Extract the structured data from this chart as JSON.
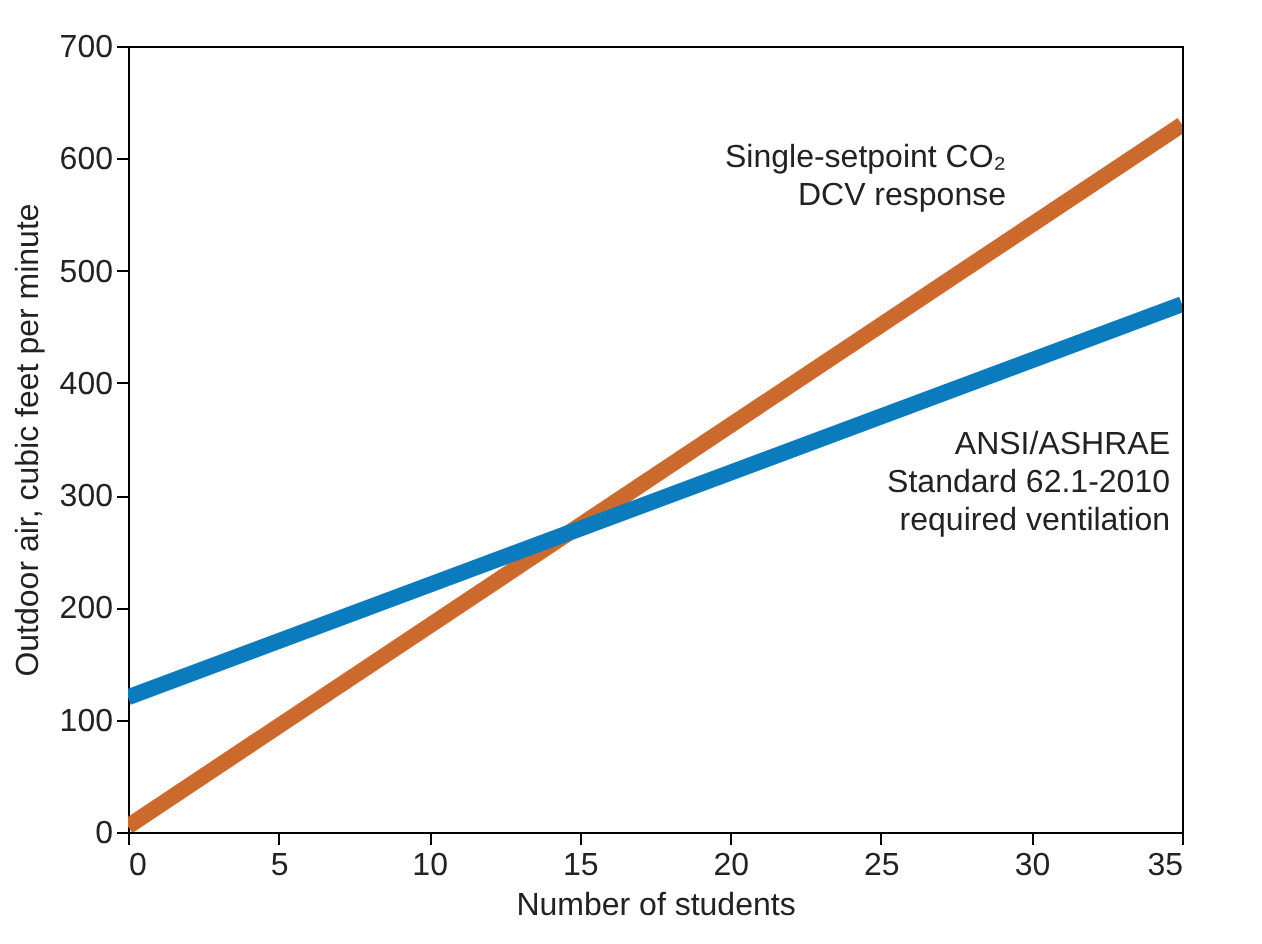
{
  "chart_data": {
    "type": "line",
    "xlabel": "Number of students",
    "ylabel": "Outdoor air, cubic feet per minute",
    "x": [
      0,
      35
    ],
    "series": [
      {
        "name": "Single-setpoint CO₂\nDCV response",
        "color": "#cc6a2e",
        "values": [
          5,
          630
        ]
      },
      {
        "name": "ANSI/ASHRAE\nStandard 62.1-2010\nrequired ventilation",
        "color": "#0a7bbd",
        "values": [
          120,
          470
        ]
      }
    ],
    "xlim": [
      0,
      35
    ],
    "xticks": [
      0,
      5,
      10,
      15,
      20,
      25,
      30,
      35
    ],
    "ylim": [
      0,
      700
    ],
    "yticks": [
      0,
      100,
      200,
      300,
      400,
      500,
      600,
      700
    ],
    "grid": false,
    "legend": false,
    "marker": "none",
    "line_style": "solid"
  }
}
